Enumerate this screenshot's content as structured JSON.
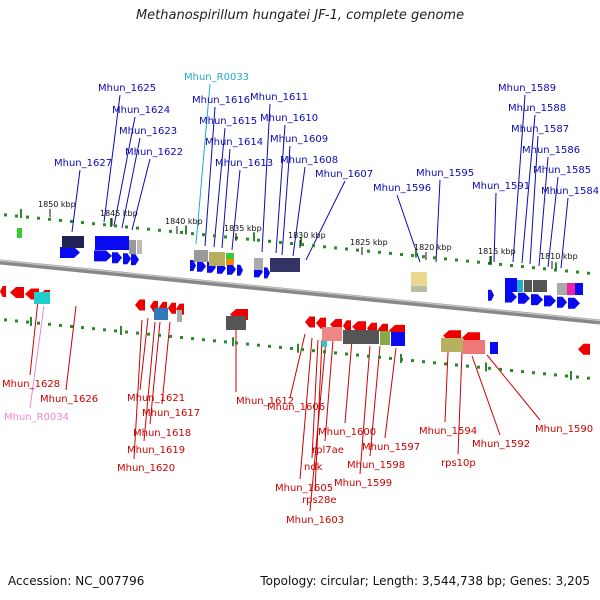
{
  "title": "Methanospirillum hungatei JF-1, complete genome",
  "footer": {
    "accession": "Accession: NC_007796",
    "summary": "Topology: circular; Length: 3,544,738 bp; Genes: 3,205"
  },
  "colors": {
    "forward_label": "#0a0ab4",
    "reverse_label": "#cc0000",
    "rna_forward": "#22aacc",
    "rna_reverse": "#ee88cc",
    "backbone": "#888888",
    "forward_gene": "#0a0af0",
    "reverse_gene": "#ee0000"
  },
  "kbp_ticks": [
    "1850 kbp",
    "1845 kbp",
    "1840 kbp",
    "1835 kbp",
    "1830 kbp",
    "1825 kbp",
    "1820 kbp",
    "1815 kbp",
    "1810 kbp"
  ],
  "labels_forward": [
    "Mhun_1625",
    "Mhun_1624",
    "Mhun_1623",
    "Mhun_1622",
    "Mhun_1627",
    "Mhun_R0033",
    "Mhun_1616",
    "Mhun_1615",
    "Mhun_1614",
    "Mhun_1613",
    "Mhun_1611",
    "Mhun_1610",
    "Mhun_1609",
    "Mhun_1608",
    "Mhun_1607",
    "Mhun_1595",
    "Mhun_1596",
    "Mhun_1589",
    "Mhun_1588",
    "Mhun_1587",
    "Mhun_1586",
    "Mhun_1585",
    "Mhun_1591",
    "Mhun_1584"
  ],
  "labels_reverse": [
    "Mhun_1628",
    "Mhun_1626",
    "Mhun_R0034",
    "Mhun_1621",
    "Mhun_1617",
    "Mhun_1618",
    "Mhun_1619",
    "Mhun_1620",
    "Mhun_1612",
    "Mhun_1606",
    "Mhun_1600",
    "rpl7ae",
    "ndk",
    "Mhun_1605",
    "rps28e",
    "Mhun_1603",
    "Mhun_1597",
    "Mhun_1598",
    "Mhun_1599",
    "Mhun_1594",
    "rps10p",
    "Mhun_1592",
    "Mhun_1590"
  ]
}
